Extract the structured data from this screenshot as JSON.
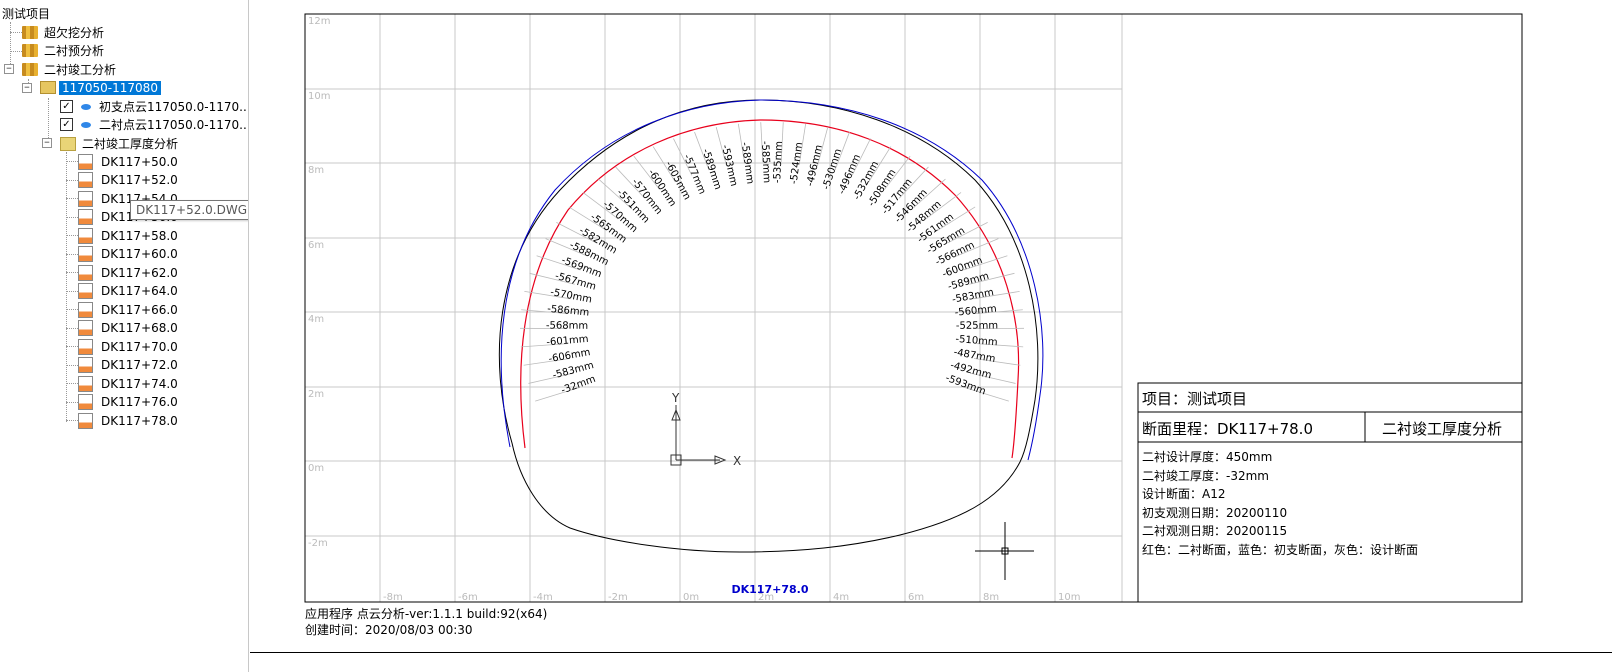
{
  "tree": {
    "root": "测试项目",
    "nodes": {
      "overunder": "超欠挖分析",
      "predict": "二衬预分析",
      "completed": "二衬竣工分析",
      "range": "117050-117080",
      "pc1": "初支点云117050.0-1170...",
      "pc2": "二衬点云117050.0-1170...",
      "thickness": "二衬竣工厚度分析"
    },
    "sections": [
      "DK117+50.0",
      "DK117+52.0",
      "DK117+54.0",
      "DK117+56.0",
      "DK117+58.0",
      "DK117+60.0",
      "DK117+62.0",
      "DK117+64.0",
      "DK117+66.0",
      "DK117+68.0",
      "DK117+70.0",
      "DK117+72.0",
      "DK117+74.0",
      "DK117+76.0",
      "DK117+78.0"
    ],
    "tooltip": "DK117+52.0.DWG"
  },
  "drawing": {
    "y_ticks": [
      "12m",
      "10m",
      "8m",
      "6m",
      "4m",
      "2m",
      "0m",
      "-2m"
    ],
    "x_ticks": [
      "-8m",
      "-6m",
      "-4m",
      "-2m",
      "0m",
      "2m",
      "4m",
      "6m",
      "8m",
      "10m"
    ],
    "section_label": "DK117+78.0",
    "thickness_labels": [
      "-32mm",
      "-583mm",
      "-606mm",
      "-601mm",
      "-568mm",
      "-586mm",
      "-570mm",
      "-567mm",
      "-569mm",
      "-588mm",
      "-582mm",
      "-565mm",
      "-570mm",
      "-551mm",
      "-570mm",
      "-600mm",
      "-605mm",
      "-577mm",
      "-589mm",
      "-593mm",
      "-589mm",
      "-585mm",
      "-535mm",
      "-524mm",
      "-496mm",
      "-530mm",
      "-496mm",
      "-532mm",
      "-508mm",
      "-517mm",
      "-546mm",
      "-548mm",
      "-561mm",
      "-565mm",
      "-566mm",
      "-600mm",
      "-589mm",
      "-583mm",
      "-560mm",
      "-525mm",
      "-510mm",
      "-487mm",
      "-492mm",
      "-593mm"
    ],
    "axis_x": "X",
    "axis_y": "Y"
  },
  "title_block": {
    "project": "项目：测试项目",
    "mileage": "断面里程：DK117+78.0",
    "type": "二衬竣工厚度分析",
    "lines": [
      "二衬设计厚度：450mm",
      "二衬竣工厚度：-32mm",
      "设计断面：A12",
      "初支观测日期：20200110",
      "二衬观测日期：20200115",
      "红色：二衬断面，蓝色：初支断面，灰色：设计断面"
    ]
  },
  "footer": {
    "app": "应用程序  点云分析-ver:1.1.1 build:92(x64)",
    "created": "创建时间：2020/08/03 00:30"
  },
  "colors": {
    "red": "#e8001c",
    "blue": "#0000cc",
    "grid": "#c8c8c8",
    "label_blue": "#0000cc"
  }
}
